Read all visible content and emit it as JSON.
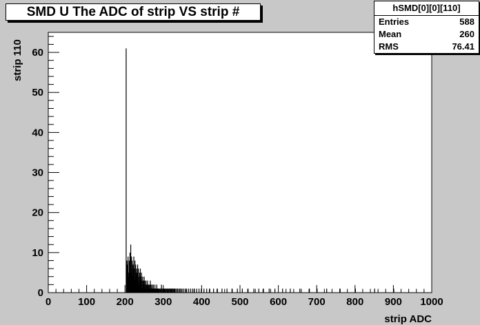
{
  "title": "SMD U The ADC of strip VS strip #",
  "stats": {
    "name": "hSMD[0][0][110]",
    "rows": [
      {
        "key": "Entries",
        "value": "588"
      },
      {
        "key": "Mean",
        "value": "260"
      },
      {
        "key": "RMS",
        "value": "76.41"
      }
    ]
  },
  "colors": {
    "background": "#c8c8c8",
    "plot_area": "#ffffff",
    "histogram": "#000000"
  },
  "chart_data": {
    "type": "bar",
    "title": "SMD U The ADC of strip VS strip #",
    "xlabel": "strip ADC",
    "ylabel": "strip 110",
    "xlim": [
      0,
      1000
    ],
    "ylim": [
      0,
      65
    ],
    "xticks": [
      0,
      100,
      200,
      300,
      400,
      500,
      600,
      700,
      800,
      900,
      1000
    ],
    "yticks": [
      0,
      10,
      20,
      30,
      40,
      50,
      60
    ],
    "bin_width": 1,
    "grid": false,
    "legend": "none",
    "series": [
      {
        "x": [
          202,
          203,
          204,
          205,
          206,
          207,
          208,
          209,
          210,
          211,
          212,
          213,
          214,
          215,
          216,
          217,
          218,
          219,
          220,
          221,
          222,
          223,
          224,
          225,
          226,
          227,
          228,
          229,
          230,
          231,
          232,
          233,
          234,
          235,
          236,
          237,
          238,
          239,
          240,
          241,
          242,
          243,
          244,
          245,
          246,
          247,
          248,
          249,
          250,
          251,
          252,
          253,
          254,
          255,
          256,
          257,
          258,
          259,
          260,
          261,
          262,
          263,
          264,
          265,
          266,
          267,
          268,
          269,
          270,
          271,
          272,
          273,
          274,
          275,
          276,
          277,
          278,
          279,
          280,
          281,
          282,
          283,
          284,
          285,
          286,
          287,
          288,
          290,
          292,
          294,
          296,
          298,
          300,
          302,
          304,
          306,
          308,
          310,
          312,
          314,
          316,
          318,
          320,
          322,
          324,
          326,
          328,
          330,
          333,
          336,
          339,
          342,
          345,
          348,
          352,
          356,
          360,
          365,
          370,
          375,
          380,
          386,
          392,
          398,
          405,
          412,
          420,
          430,
          440,
          452,
          465,
          478,
          492,
          505,
          520,
          535,
          548,
          560,
          575,
          590,
          610,
          630,
          655,
          680,
          700,
          725,
          760,
          800,
          850,
          900
        ],
        "values": [
          61,
          4,
          8,
          6,
          7,
          9,
          5,
          4,
          8,
          6,
          10,
          7,
          12,
          5,
          9,
          6,
          8,
          4,
          7,
          5,
          9,
          6,
          3,
          8,
          5,
          7,
          4,
          6,
          2,
          5,
          7,
          3,
          6,
          4,
          2,
          5,
          3,
          6,
          4,
          2,
          5,
          3,
          1,
          4,
          2,
          3,
          1,
          4,
          2,
          3,
          1,
          2,
          3,
          1,
          2,
          1,
          3,
          2,
          1,
          2,
          1,
          2,
          1,
          3,
          1,
          2,
          1,
          1,
          2,
          1,
          1,
          2,
          1,
          1,
          1,
          2,
          1,
          1,
          1,
          1,
          2,
          1,
          1,
          1,
          1,
          1,
          1,
          1,
          1,
          2,
          1,
          1,
          1,
          1,
          1,
          1,
          1,
          1,
          1,
          1,
          1,
          1,
          1,
          1,
          1,
          1,
          1,
          1,
          1,
          1,
          1,
          1,
          1,
          1,
          1,
          1,
          1,
          1,
          1,
          1,
          1,
          1,
          1,
          1,
          1,
          1,
          1,
          1,
          1,
          1,
          1,
          1,
          1,
          1,
          1,
          1,
          1,
          1,
          1,
          1,
          1,
          1,
          1,
          1,
          1,
          1,
          1,
          1,
          1,
          1
        ]
      }
    ]
  }
}
